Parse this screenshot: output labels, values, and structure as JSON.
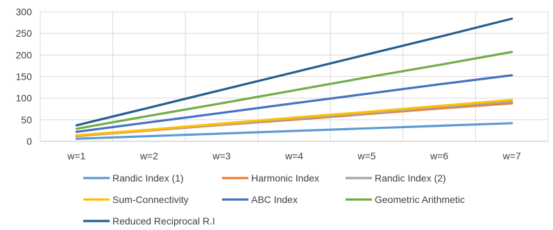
{
  "chart_data": {
    "type": "line",
    "title": "",
    "xlabel": "",
    "ylabel": "",
    "categories": [
      "w=1",
      "w=2",
      "w=3",
      "w=4",
      "w=5",
      "w=6",
      "w=7"
    ],
    "ylim": [
      0,
      300
    ],
    "yticks": [
      0,
      50,
      100,
      150,
      200,
      250,
      300
    ],
    "grid": true,
    "legend_position": "bottom",
    "series": [
      {
        "name": "Randic Index (1)",
        "color": "#5B9BD5",
        "values": [
          6,
          12,
          18,
          24,
          30,
          36,
          42
        ]
      },
      {
        "name": "Harmonic Index",
        "color": "#ED7D31",
        "values": [
          12,
          25,
          38,
          50,
          63,
          76,
          88
        ]
      },
      {
        "name": "Randic Index (2)",
        "color": "#A5A5A5",
        "values": [
          13,
          26,
          39,
          52,
          65,
          79,
          92
        ]
      },
      {
        "name": "Sum-Connectivity",
        "color": "#FFC000",
        "values": [
          14,
          27,
          41,
          55,
          68,
          82,
          96
        ]
      },
      {
        "name": "ABC Index",
        "color": "#4472C4",
        "values": [
          22,
          44,
          66,
          88,
          110,
          132,
          153
        ]
      },
      {
        "name": "Geometric Arithmetic",
        "color": "#70AD47",
        "values": [
          29,
          59,
          88,
          118,
          148,
          177,
          207
        ]
      },
      {
        "name": "Reduced Reciprocal R.I",
        "color": "#255E91",
        "values": [
          37,
          78,
          119,
          160,
          201,
          242,
          284
        ]
      }
    ]
  }
}
